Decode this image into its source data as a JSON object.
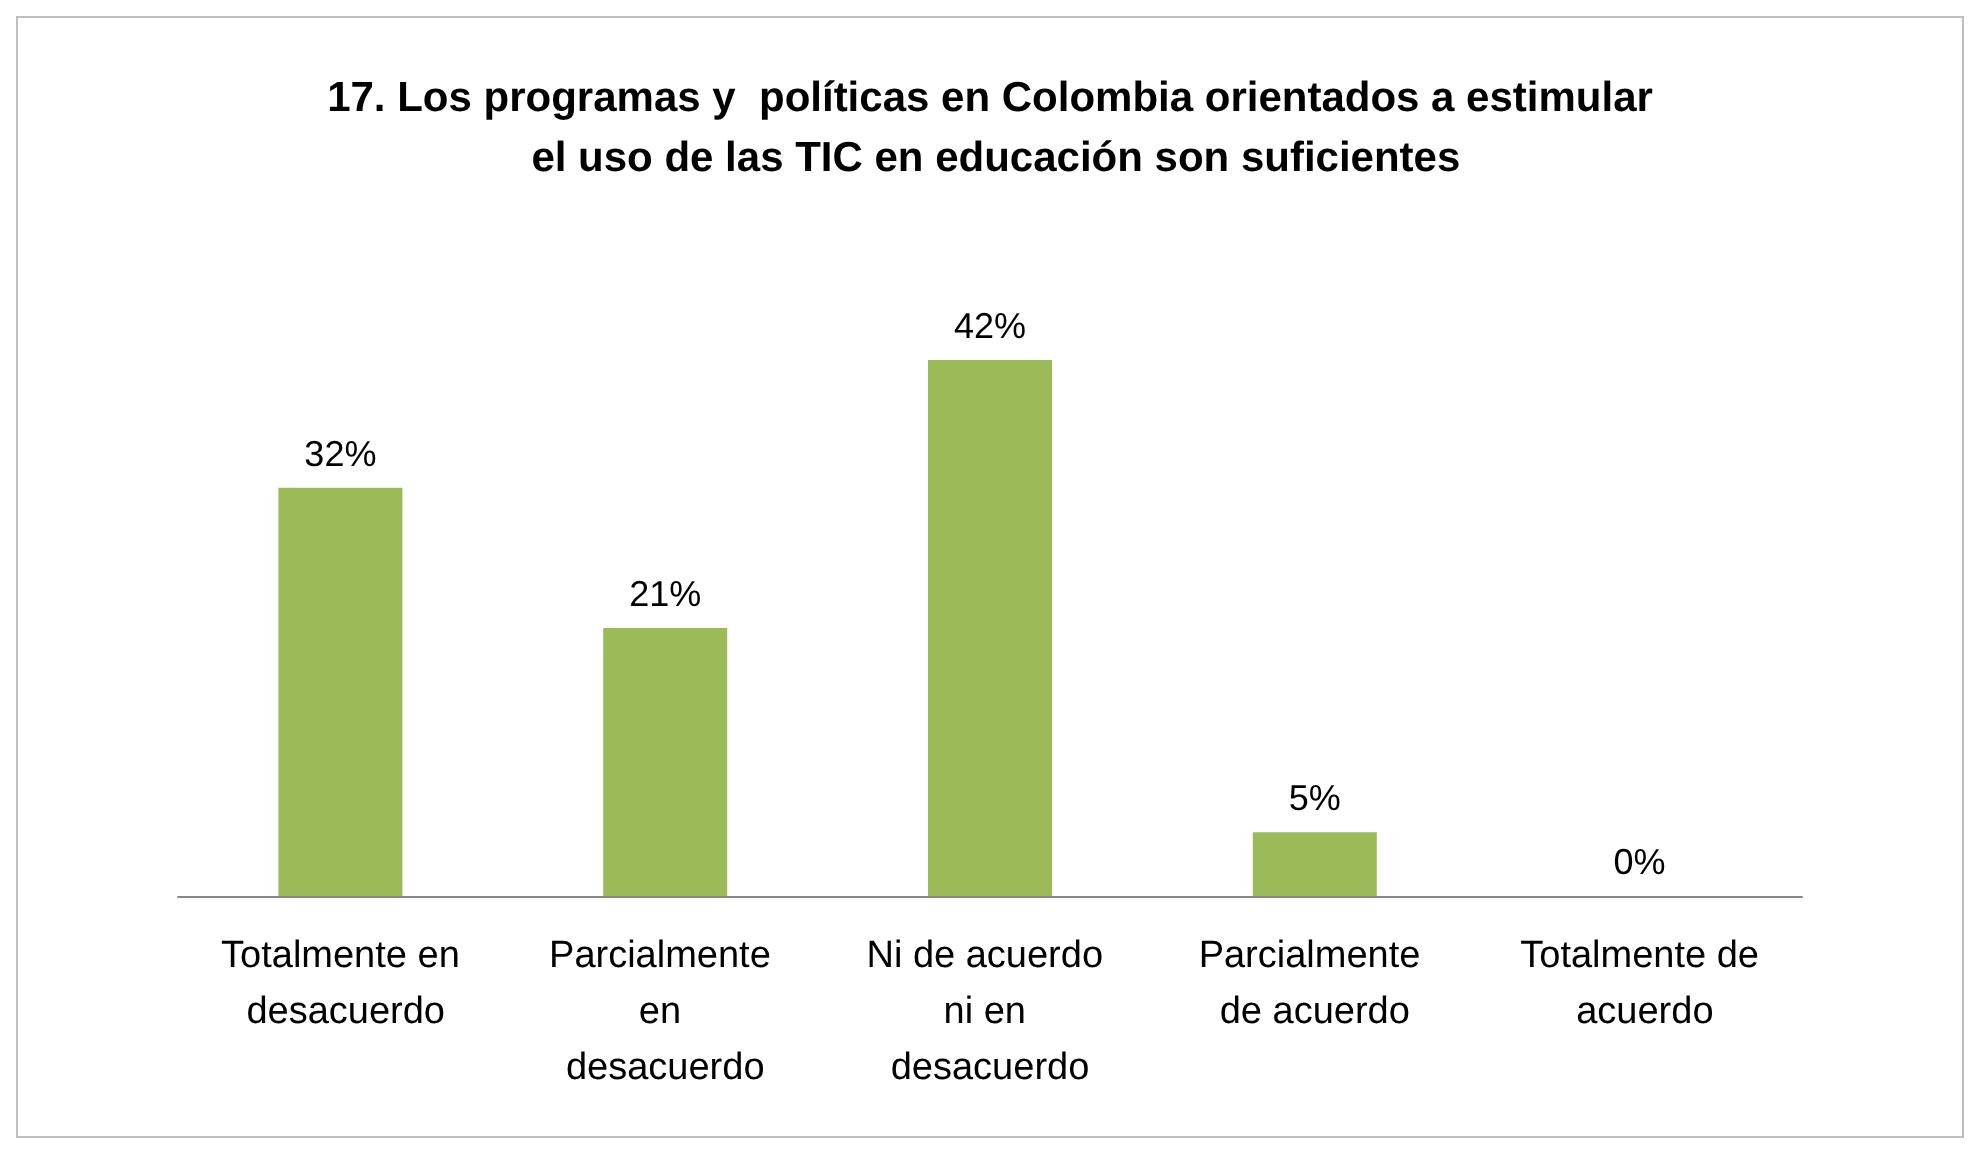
{
  "chart_data": {
    "type": "bar",
    "title": "17. Los programas y  políticas en Colombia orientados a estimular el uso de las TIC en educación son suficientes",
    "categories": [
      "Totalmente en desacuerdo",
      "Parcialmente en desacuerdo",
      "Ni de acuerdo ni en desacuerdo",
      "Parcialmente de acuerdo",
      "Totalmente de acuerdo"
    ],
    "values": [
      32,
      21,
      42,
      5,
      0
    ],
    "value_labels": [
      "32%",
      "21%",
      "42%",
      "5%",
      "0%"
    ],
    "color": "#9bbb59",
    "grid": false
  }
}
